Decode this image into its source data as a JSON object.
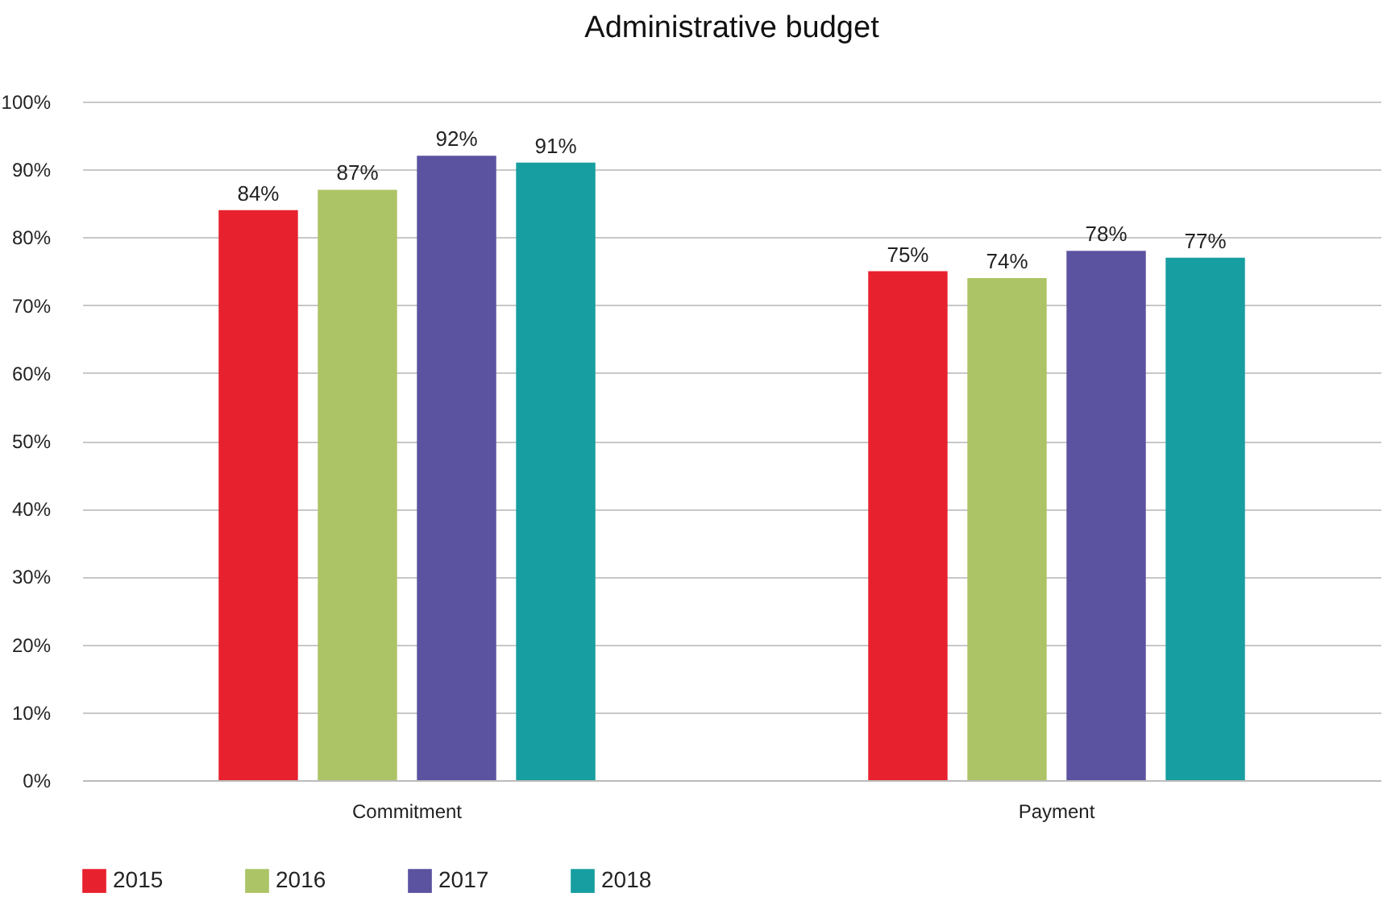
{
  "chart_data": {
    "type": "bar",
    "title": "Administrative budget",
    "categories": [
      "Commitment",
      "Payment"
    ],
    "series": [
      {
        "name": "2015",
        "color": "#e8212e",
        "values": [
          84,
          75
        ],
        "value_labels": [
          "84%",
          "75%"
        ]
      },
      {
        "name": "2016",
        "color": "#adc466",
        "values": [
          87,
          74
        ],
        "value_labels": [
          "87%",
          "74%"
        ]
      },
      {
        "name": "2017",
        "color": "#5b52a0",
        "values": [
          92,
          78
        ],
        "value_labels": [
          "92%",
          "78%"
        ]
      },
      {
        "name": "2018",
        "color": "#179ea0",
        "values": [
          91,
          77
        ],
        "value_labels": [
          "91%",
          "77%"
        ]
      }
    ],
    "ylim": [
      0,
      100
    ],
    "yticks": [
      {
        "value": 0,
        "label": "0%"
      },
      {
        "value": 10,
        "label": "10%"
      },
      {
        "value": 20,
        "label": "20%"
      },
      {
        "value": 30,
        "label": "30%"
      },
      {
        "value": 40,
        "label": "40%"
      },
      {
        "value": 50,
        "label": "50%"
      },
      {
        "value": 60,
        "label": "60%"
      },
      {
        "value": 70,
        "label": "70%"
      },
      {
        "value": 80,
        "label": "80%"
      },
      {
        "value": 90,
        "label": "90%"
      },
      {
        "value": 100,
        "label": "100%"
      }
    ],
    "grid": "y",
    "legend": "bottom"
  }
}
